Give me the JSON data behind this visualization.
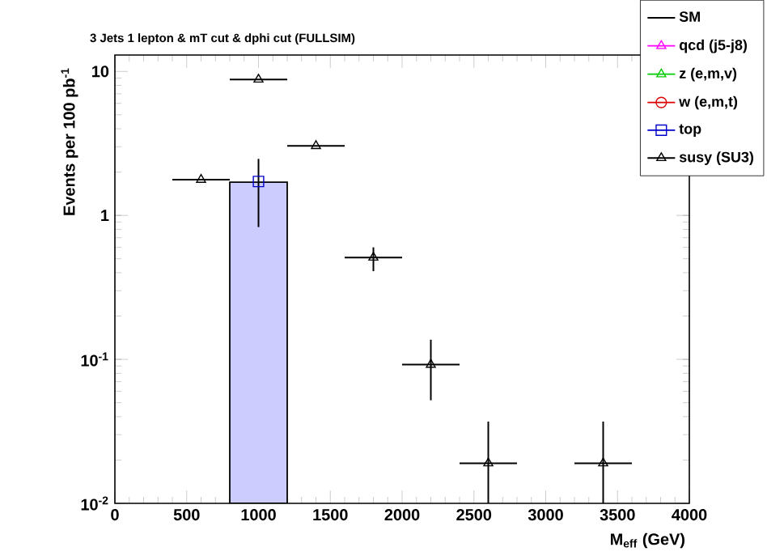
{
  "chart_data": {
    "type": "scatter",
    "title": "3 Jets 1 lepton & mT cut & dphi cut (FULLSIM)",
    "xlabel": "M$_{eff}$ (GeV)",
    "ylabel": "Events per 100 pb$^{-1}$",
    "log": "y",
    "legend": "top right",
    "xlim": [
      0,
      4000
    ],
    "ylim": [
      0.01,
      13
    ],
    "xticks": [
      0,
      500,
      1000,
      1500,
      2000,
      2500,
      3000,
      3500,
      4000
    ],
    "yticks": [
      {
        "value": 0.01,
        "label": "10$^{-2}$"
      },
      {
        "value": 0.1,
        "label": "10$^{-1}$"
      },
      1,
      10
    ],
    "series": [
      {
        "type": "histogram",
        "color": "#ccccff",
        "bins": [
          800,
          1200
        ],
        "values": [
          1.7
        ]
      },
      {
        "name": "SM",
        "type": "line",
        "color": "#000000",
        "marker": "none"
      },
      {
        "name": "qcd (j5-j8)",
        "color": "#ff00ff",
        "marker": "triangle"
      },
      {
        "name": "z (e,m,v)",
        "color": "#00cc00",
        "marker": "triangle"
      },
      {
        "name": "w (e,m,t)",
        "color": "#dd0000",
        "marker": "circle"
      },
      {
        "name": "top",
        "color": "#0000cc",
        "marker": "square",
        "x": [
          1000
        ],
        "values": [
          1.72
        ],
        "errors": [
          [
            0.83,
            2.47
          ]
        ]
      },
      {
        "name": "susy (SU3)",
        "color": "#000000",
        "marker": "triangle",
        "x": [
          600,
          1000,
          1400,
          1800,
          2200,
          2600,
          3400
        ],
        "values": [
          1.77,
          8.8,
          3.04,
          0.51,
          0.092,
          0.019,
          0.019
        ],
        "errors": [
          null,
          null,
          null,
          [
            0.41,
            0.6
          ],
          [
            0.052,
            0.137
          ],
          [
            0.01,
            0.037
          ],
          [
            0.01,
            0.037
          ]
        ],
        "xerrors": [
          200,
          200,
          200,
          200,
          200,
          200,
          200
        ]
      }
    ]
  }
}
